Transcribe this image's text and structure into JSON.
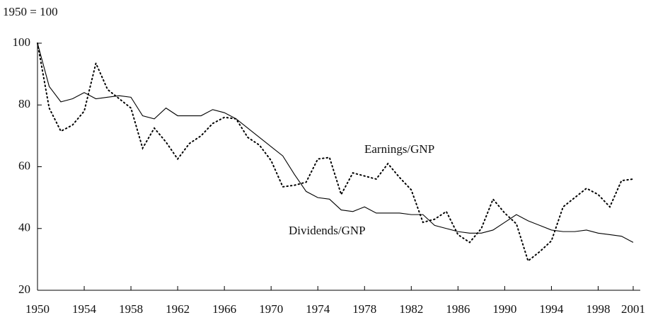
{
  "chart_data": {
    "type": "line",
    "ylabel": "1950 = 100",
    "x": [
      1950,
      1951,
      1952,
      1953,
      1954,
      1955,
      1956,
      1957,
      1958,
      1959,
      1960,
      1961,
      1962,
      1963,
      1964,
      1965,
      1966,
      1967,
      1968,
      1969,
      1970,
      1971,
      1972,
      1973,
      1974,
      1975,
      1976,
      1977,
      1978,
      1979,
      1980,
      1981,
      1982,
      1983,
      1984,
      1985,
      1986,
      1987,
      1988,
      1989,
      1990,
      1991,
      1992,
      1993,
      1994,
      1995,
      1996,
      1997,
      1998,
      1999,
      2000,
      2001
    ],
    "series": [
      {
        "name": "Dividends/GNP",
        "color": "#000000",
        "style": "solid",
        "values": [
          100,
          86,
          81,
          82,
          84,
          82,
          82.5,
          83,
          82.5,
          76.5,
          75.5,
          79,
          76.5,
          76.5,
          76.5,
          78.5,
          77.5,
          75.5,
          72.5,
          69.5,
          66.5,
          63.5,
          57.5,
          52,
          50,
          49.5,
          46,
          45.5,
          47,
          45,
          45,
          45,
          44.5,
          44.5,
          41,
          40,
          39,
          38.5,
          38.5,
          39.5,
          42,
          44.5,
          42.5,
          41,
          39.5,
          39,
          39,
          39.5,
          38.5,
          38,
          37.5,
          35.5
        ]
      },
      {
        "name": "Earnings/GNP",
        "color": "#000000",
        "style": "dotted",
        "values": [
          100,
          79,
          71.5,
          73.5,
          78,
          93.5,
          85,
          82,
          79,
          66,
          72.5,
          68,
          62.5,
          67.5,
          70,
          74,
          76,
          75.5,
          69.5,
          67,
          62,
          53.5,
          54,
          55,
          62.5,
          63,
          51,
          58,
          57,
          56,
          61,
          56.5,
          52.5,
          42,
          43,
          45.5,
          38,
          35.5,
          40,
          49.5,
          45,
          41.5,
          29.5,
          32.5,
          36,
          47,
          50,
          53,
          51,
          47,
          55.5,
          56
        ]
      }
    ],
    "xlim": [
      1950,
      2001
    ],
    "xticks": [
      1950,
      1954,
      1958,
      1962,
      1966,
      1970,
      1974,
      1978,
      1982,
      1986,
      1990,
      1994,
      1998,
      2001
    ],
    "ylim": [
      20,
      100
    ],
    "yticks": [
      20,
      40,
      60,
      80,
      100
    ],
    "grid": false
  }
}
